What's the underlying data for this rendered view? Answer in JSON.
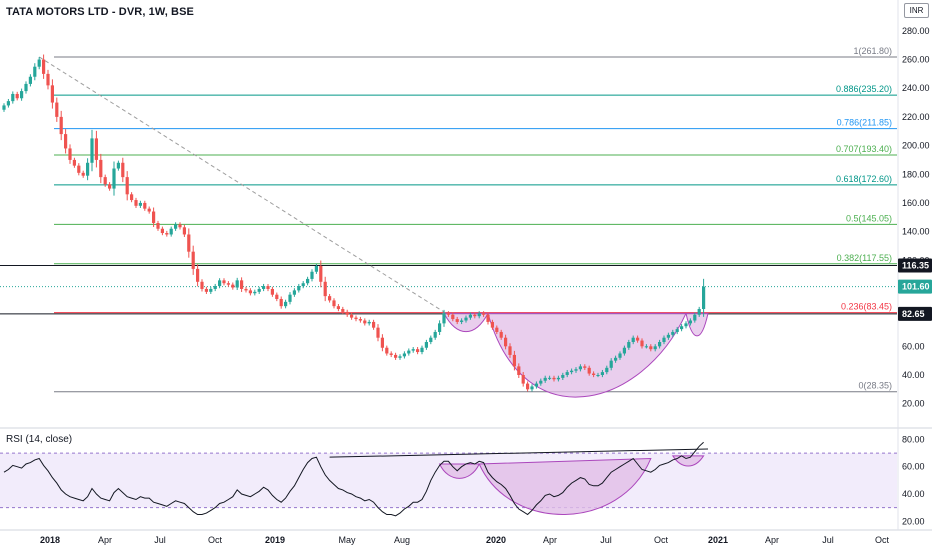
{
  "header": {
    "title": "TATA MOTORS LTD - DVR, 1W, BSE",
    "currency": "INR"
  },
  "colors": {
    "up": "#26a69a",
    "down": "#ef5350",
    "rsi_line": "#131722",
    "rsi_band": "#e7dcf7",
    "rsi_band_border": "#9575cd",
    "cup_fill": "#e1bee7",
    "cup_stroke": "#ab47bc",
    "trend_dash": "#9e9e9e"
  },
  "chart_data": [
    {
      "type": "candlestick",
      "title": "TATA MOTORS LTD - DVR, 1W, BSE",
      "interval": "1W",
      "x_tick_labels": [
        "2018",
        "Apr",
        "Jul",
        "Oct",
        "2019",
        "May",
        "Aug",
        "2020",
        "Apr",
        "Jul",
        "Oct",
        "2021",
        "Apr",
        "Jul",
        "Oct"
      ],
      "y_tick_labels": [
        "20.00",
        "40.00",
        "60.00",
        "80.00",
        "100.00",
        "120.00",
        "140.00",
        "160.00",
        "180.00",
        "200.00",
        "220.00",
        "240.00",
        "260.00",
        "280.00"
      ],
      "ylim": [
        10,
        282
      ],
      "grid": false,
      "price_labels": [
        {
          "value": 116.35,
          "text": "116.35",
          "bg": "#131722"
        },
        {
          "value": 101.6,
          "text": "101.60",
          "bg": "#26a69a"
        },
        {
          "value": 82.65,
          "text": "82.65",
          "bg": "#131722"
        }
      ],
      "fibonacci": [
        {
          "ratio": "1",
          "price": 261.8,
          "label": "1(261.80)",
          "color": "#787b86"
        },
        {
          "ratio": "0.886",
          "price": 235.2,
          "label": "0.886(235.20)",
          "color": "#009688"
        },
        {
          "ratio": "0.786",
          "price": 211.85,
          "label": "0.786(211.85)",
          "color": "#2196f3"
        },
        {
          "ratio": "0.707",
          "price": 193.4,
          "label": "0.707(193.40)",
          "color": "#4caf50"
        },
        {
          "ratio": "0.618",
          "price": 172.6,
          "label": "0.618(172.60)",
          "color": "#009688"
        },
        {
          "ratio": "0.5",
          "price": 145.05,
          "label": "0.5(145.05)",
          "color": "#4caf50"
        },
        {
          "ratio": "0.382",
          "price": 117.55,
          "label": "0.382(117.55)",
          "color": "#4caf50"
        },
        {
          "ratio": "0.236",
          "price": 83.45,
          "label": "0.236(83.45)",
          "color": "#f23645"
        },
        {
          "ratio": "0",
          "price": 28.35,
          "label": "0(28.35)",
          "color": "#787b86"
        }
      ],
      "series": [
        {
          "name": "price",
          "closes": [
            228,
            231,
            236,
            233,
            238,
            243,
            248,
            255,
            260,
            250,
            242,
            230,
            220,
            208,
            198,
            190,
            186,
            181,
            179,
            188,
            205,
            190,
            178,
            173,
            170,
            184,
            188,
            178,
            166,
            162,
            158,
            160,
            156,
            154,
            146,
            142,
            139,
            138,
            142,
            145,
            143,
            138,
            126,
            114,
            105,
            100,
            98,
            100,
            102,
            106,
            104,
            103,
            101,
            106,
            100,
            99,
            97,
            98,
            100,
            102,
            100,
            96,
            93,
            88,
            91,
            96,
            99,
            102,
            104,
            107,
            112,
            116,
            105,
            95,
            92,
            88,
            86,
            84,
            82,
            80,
            79,
            78,
            76,
            77,
            73,
            66,
            59,
            55,
            54,
            52,
            53,
            55,
            57,
            58,
            56,
            59,
            63,
            66,
            70,
            76,
            83,
            82,
            79,
            77,
            78,
            80,
            82,
            81,
            83,
            82,
            77,
            73,
            70,
            66,
            60,
            54,
            46,
            40,
            34,
            30,
            32,
            34,
            36,
            38,
            38,
            37,
            38,
            40,
            42,
            43,
            44,
            46,
            45,
            41,
            40,
            40,
            42,
            45,
            50,
            52,
            55,
            59,
            63,
            66,
            64,
            60,
            60,
            58,
            60,
            63,
            66,
            68,
            70,
            72,
            74,
            76,
            78,
            82,
            86,
            101.6
          ]
        }
      ]
    },
    {
      "type": "line",
      "title": "RSI (14, close)",
      "y_tick_labels": [
        "20.00",
        "40.00",
        "60.00",
        "80.00"
      ],
      "ylim": [
        18,
        84
      ],
      "band": [
        30,
        70
      ],
      "series": [
        {
          "name": "RSI",
          "values": [
            56,
            58,
            61,
            60,
            59,
            62,
            63,
            65,
            66,
            61,
            57,
            52,
            48,
            43,
            40,
            38,
            37,
            36,
            35,
            38,
            44,
            40,
            37,
            36,
            35,
            41,
            44,
            41,
            38,
            37,
            36,
            38,
            37,
            37,
            34,
            33,
            32,
            31,
            33,
            35,
            34,
            33,
            30,
            27,
            25,
            25,
            26,
            28,
            30,
            33,
            34,
            36,
            38,
            43,
            40,
            39,
            38,
            40,
            42,
            45,
            43,
            39,
            36,
            34,
            37,
            42,
            46,
            52,
            58,
            63,
            66,
            67,
            60,
            54,
            50,
            47,
            44,
            43,
            41,
            40,
            38,
            37,
            35,
            36,
            34,
            30,
            27,
            25,
            25,
            24,
            26,
            29,
            31,
            34,
            34,
            36,
            42,
            50,
            56,
            61,
            64,
            64,
            60,
            57,
            60,
            62,
            63,
            62,
            64,
            63,
            56,
            52,
            49,
            47,
            44,
            39,
            33,
            29,
            27,
            25,
            28,
            32,
            35,
            39,
            40,
            38,
            39,
            41,
            45,
            48,
            50,
            52,
            51,
            47,
            46,
            46,
            48,
            52,
            56,
            58,
            60,
            62,
            64,
            66,
            62,
            58,
            57,
            56,
            58,
            61,
            62,
            63,
            65,
            66,
            68,
            66,
            67,
            71,
            75,
            78
          ]
        }
      ]
    }
  ]
}
